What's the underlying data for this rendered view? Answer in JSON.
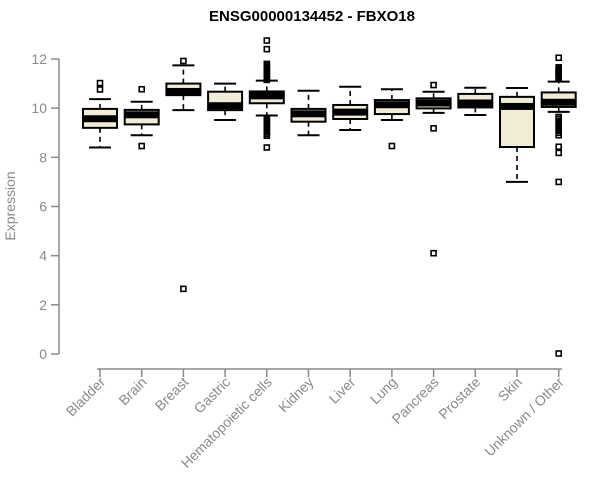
{
  "title": "ENSG00000134452 - FBXO18",
  "chart_data": {
    "type": "boxplot",
    "title": "ENSG00000134452 - FBXO18",
    "xlabel": "",
    "ylabel": "Expression",
    "yticks": [
      0,
      2,
      4,
      6,
      8,
      10,
      12
    ],
    "ylim": [
      0,
      12.9
    ],
    "grid": "off",
    "categories": [
      "Bladder",
      "Brain",
      "Breast",
      "Gastric",
      "Hematopoietic cells",
      "Kidney",
      "Liver",
      "Lung",
      "Pancreas",
      "Prostate",
      "Skin",
      "Unknown / Other"
    ],
    "series": [
      {
        "category": "Bladder",
        "whisker_low": 8.4,
        "q1": 9.2,
        "median": 9.57,
        "q3": 9.97,
        "whisker_high": 10.37,
        "outliers": [
          10.76,
          11.02
        ]
      },
      {
        "category": "Brain",
        "whisker_low": 8.9,
        "q1": 9.34,
        "median": 9.73,
        "q3": 9.93,
        "whisker_high": 10.26,
        "outliers": [
          10.77,
          8.46
        ]
      },
      {
        "category": "Breast",
        "whisker_low": 9.92,
        "q1": 10.53,
        "median": 10.68,
        "q3": 11.0,
        "whisker_high": 11.74,
        "outliers": [
          11.92,
          2.65
        ]
      },
      {
        "category": "Gastric",
        "whisker_low": 9.52,
        "q1": 9.92,
        "median": 10.1,
        "q3": 10.67,
        "whisker_high": 11.0,
        "outliers": []
      },
      {
        "category": "Hematopoietic cells",
        "whisker_low": 9.7,
        "q1": 10.2,
        "median": 10.5,
        "q3": 10.68,
        "whisker_high": 11.12,
        "outliers": [
          12.75,
          12.4,
          11.8,
          11.74,
          11.68,
          11.62,
          11.56,
          11.5,
          11.44,
          11.38,
          11.32,
          11.26,
          11.2,
          11.15,
          9.6,
          9.54,
          9.48,
          9.42,
          9.36,
          9.3,
          9.24,
          9.18,
          9.1,
          9.02,
          8.95,
          8.88,
          8.4
        ]
      },
      {
        "category": "Kidney",
        "whisker_low": 8.9,
        "q1": 9.45,
        "median": 9.77,
        "q3": 9.97,
        "whisker_high": 10.71,
        "outliers": []
      },
      {
        "category": "Liver",
        "whisker_low": 9.11,
        "q1": 9.56,
        "median": 9.84,
        "q3": 10.13,
        "whisker_high": 10.87,
        "outliers": []
      },
      {
        "category": "Lung",
        "whisker_low": 9.52,
        "q1": 9.76,
        "median": 10.14,
        "q3": 10.33,
        "whisker_high": 10.77,
        "outliers": [
          8.46
        ]
      },
      {
        "category": "Pancreas",
        "whisker_low": 9.81,
        "q1": 9.99,
        "median": 10.21,
        "q3": 10.4,
        "whisker_high": 10.67,
        "outliers": [
          10.94,
          9.18,
          4.1
        ]
      },
      {
        "category": "Prostate",
        "whisker_low": 9.72,
        "q1": 10.03,
        "median": 10.21,
        "q3": 10.58,
        "whisker_high": 10.83,
        "outliers": []
      },
      {
        "category": "Skin",
        "whisker_low": 7.0,
        "q1": 8.42,
        "median": 10.07,
        "q3": 10.46,
        "whisker_high": 10.82,
        "outliers": []
      },
      {
        "category": "Unknown / Other",
        "whisker_low": 9.85,
        "q1": 10.05,
        "median": 10.24,
        "q3": 10.64,
        "whisker_high": 11.08,
        "outliers": [
          12.05,
          11.66,
          11.6,
          11.54,
          11.48,
          11.42,
          11.36,
          11.3,
          11.24,
          11.18,
          9.64,
          9.56,
          9.48,
          9.4,
          9.32,
          9.24,
          9.16,
          9.08,
          9.0,
          8.9,
          8.43,
          8.18,
          7.0,
          0.02
        ]
      }
    ],
    "colors": {
      "box_fill": "#F1ECD6",
      "box_stroke": "#000000",
      "median": "#000000",
      "outlier": "#000000",
      "axis": "#8A8A8A",
      "tick_label": "#8A8A8A",
      "title": "#000000",
      "background": "#FFFFFF"
    },
    "legend": "none"
  }
}
